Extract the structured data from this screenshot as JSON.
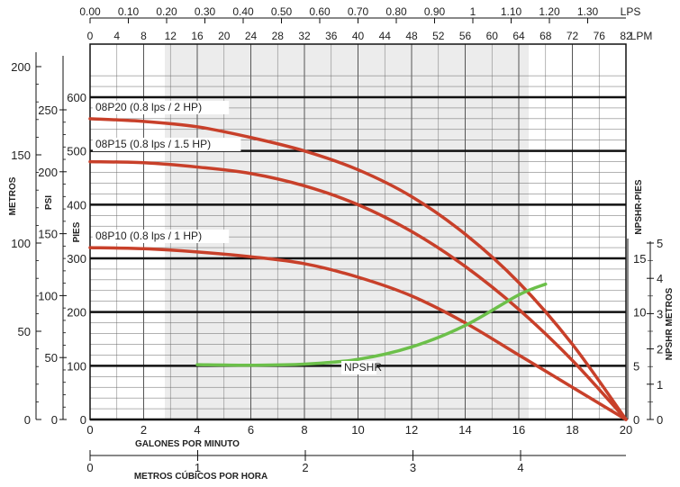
{
  "chart_data": {
    "type": "line",
    "x_axis_bottom": {
      "label": "GALONES POR MINUTO",
      "range": [
        0,
        20
      ],
      "ticks": [
        0,
        2,
        4,
        6,
        8,
        10,
        12,
        14,
        16,
        18,
        20
      ]
    },
    "x_axis_m3h": {
      "label": "METROS CÚBICOS POR HORA",
      "ticks": [
        0,
        1,
        2,
        3,
        4
      ]
    },
    "x_axis_lps": {
      "label": "LPS",
      "ticks": [
        "0.00",
        "0.10",
        "0.20",
        "0.30",
        "0.40",
        "0.50",
        "0.60",
        "0.70",
        "0.80",
        "0.90",
        "1",
        "1.10",
        "1.20",
        "1.30"
      ]
    },
    "x_axis_lpm": {
      "label": "LPM",
      "ticks": [
        0,
        4,
        8,
        12,
        16,
        20,
        24,
        28,
        32,
        36,
        40,
        44,
        48,
        52,
        56,
        60,
        64,
        68,
        72,
        76,
        82
      ]
    },
    "y_axis_pies": {
      "label": "PIES",
      "range": [
        0,
        600
      ],
      "ticks": [
        0,
        100,
        200,
        300,
        400,
        500,
        600
      ]
    },
    "y_axis_psi": {
      "label": "PSI",
      "ticks": [
        0,
        50,
        100,
        150,
        200,
        250
      ]
    },
    "y_axis_metros": {
      "label": "METROS",
      "ticks": [
        0,
        50,
        100,
        150,
        200
      ]
    },
    "y_axis_npshr_pies": {
      "label": "NPSHR-PIES",
      "ticks": [
        0,
        5,
        10,
        15
      ]
    },
    "y_axis_npshr_metros": {
      "label": "NPSHR METROS",
      "ticks": [
        0,
        1,
        2,
        3,
        4,
        5
      ]
    },
    "series": [
      {
        "name": "08P20 (0.8 lps / 2 HP)",
        "color": "#c8402a",
        "x": [
          0,
          2,
          4,
          6,
          8,
          10,
          12,
          14,
          16,
          18,
          20
        ],
        "y": [
          560,
          555,
          545,
          525,
          500,
          465,
          415,
          345,
          255,
          140,
          0
        ]
      },
      {
        "name": "08P15 (0.8 lps / 1.5 HP)",
        "color": "#c8402a",
        "x": [
          0,
          2,
          4,
          6,
          8,
          10,
          12,
          14,
          16,
          18,
          20
        ],
        "y": [
          480,
          478,
          470,
          458,
          435,
          400,
          350,
          285,
          205,
          110,
          0
        ]
      },
      {
        "name": "08P10 (0.8 lps / 1 HP)",
        "color": "#c8402a",
        "x": [
          0,
          2,
          4,
          6,
          8,
          10,
          12,
          14,
          16,
          18,
          20
        ],
        "y": [
          320,
          318,
          312,
          303,
          290,
          265,
          230,
          180,
          120,
          60,
          0
        ]
      },
      {
        "name": "NPSHR",
        "color": "#6cc04a",
        "x": [
          4,
          6,
          8,
          10,
          12,
          14,
          16,
          17
        ],
        "y": [
          102,
          101,
          103,
          112,
          135,
          175,
          232,
          252
        ]
      }
    ]
  }
}
